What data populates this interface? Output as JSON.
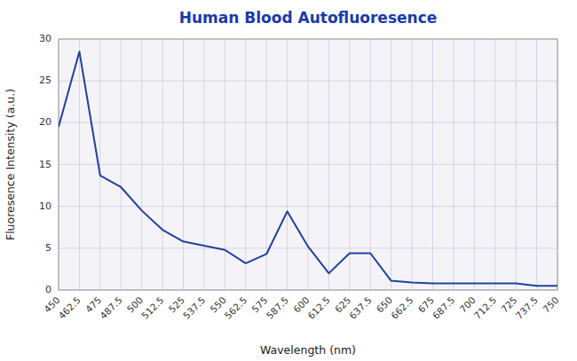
{
  "chart_data": {
    "type": "line",
    "title": "Human Blood Autofluoresence",
    "xlabel": "Wavelength (nm)",
    "ylabel": "Fluoresence Intensity (a.u.)",
    "x": [
      450,
      462.5,
      475,
      487.5,
      500,
      512.5,
      525,
      537.5,
      550,
      562.5,
      575,
      587.5,
      600,
      612.5,
      625,
      637.5,
      650,
      662.5,
      675,
      687.5,
      700,
      712.5,
      725,
      737.5,
      750
    ],
    "values": [
      19.5,
      28.5,
      13.7,
      12.3,
      9.5,
      7.2,
      5.8,
      5.3,
      4.8,
      3.2,
      4.3,
      9.4,
      5.2,
      2.0,
      4.4,
      4.4,
      1.1,
      0.9,
      0.8,
      0.8,
      0.8,
      0.8,
      0.8,
      0.5,
      0.5
    ],
    "color": "#2040a0",
    "xlim": [
      450,
      750
    ],
    "ylim": [
      0,
      30
    ],
    "xticks": [
      450,
      462.5,
      475,
      487.5,
      500,
      512.5,
      525,
      537.5,
      550,
      562.5,
      575,
      587.5,
      600,
      612.5,
      625,
      637.5,
      650,
      662.5,
      675,
      687.5,
      700,
      712.5,
      725,
      737.5,
      750
    ],
    "yticks": [
      0,
      5,
      10,
      15,
      20,
      25,
      30
    ],
    "grid": true
  }
}
